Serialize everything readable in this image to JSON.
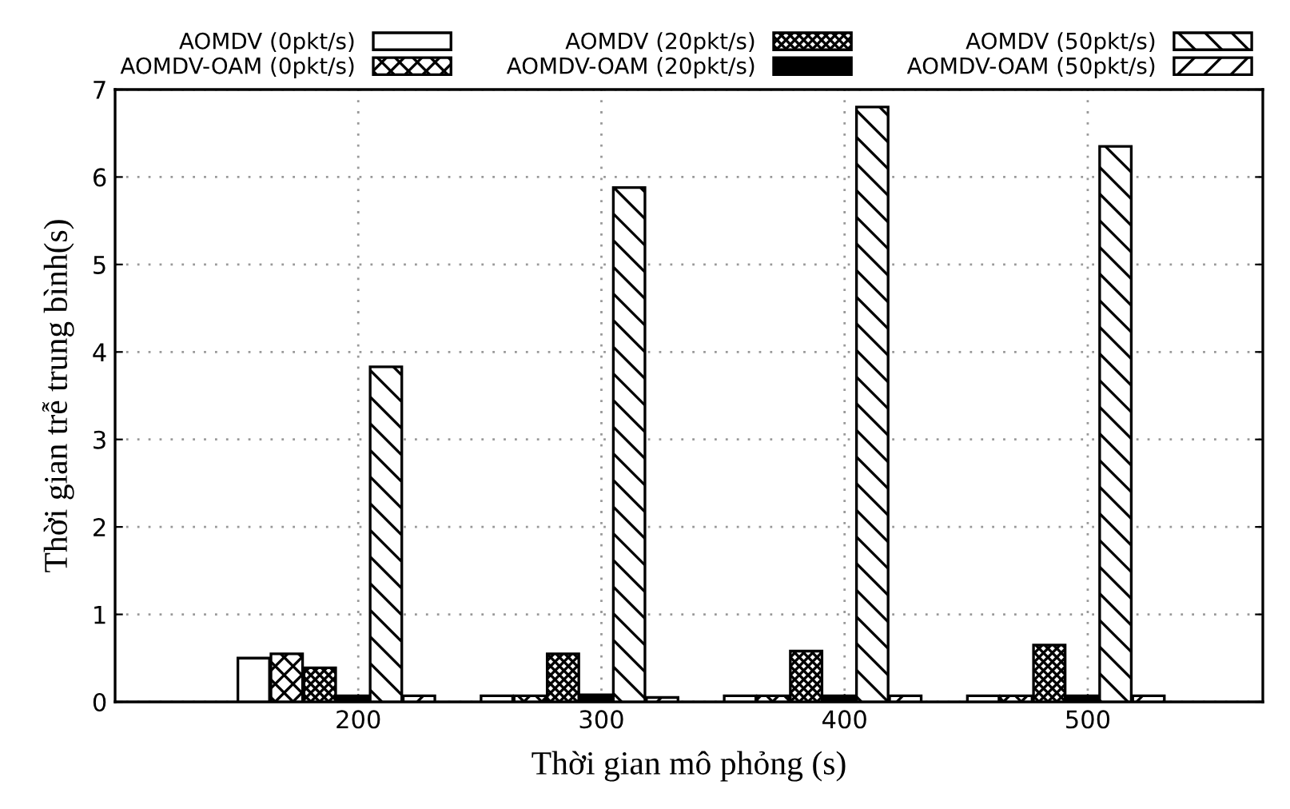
{
  "chart_data": {
    "type": "bar",
    "xlabel": "Thời gian mô phỏng (s)",
    "ylabel": "Thời gian trễ trung bình(s)",
    "categories": [
      "200",
      "300",
      "400",
      "500"
    ],
    "series": [
      {
        "name": "AOMDV (0pkt/s)",
        "color": "#ffffff",
        "values": [
          0.5,
          0.07,
          0.07,
          0.07
        ]
      },
      {
        "name": "AOMDV-OAM (0pkt/s)",
        "color": "#000000",
        "values": [
          0.55,
          0.07,
          0.07,
          0.07
        ]
      },
      {
        "name": "AOMDV (20pkt/s)",
        "color": "#000000",
        "values": [
          0.39,
          0.55,
          0.58,
          0.65
        ]
      },
      {
        "name": "AOMDV-OAM (20pkt/s)",
        "color": "#000000",
        "values": [
          0.07,
          0.08,
          0.07,
          0.07
        ]
      },
      {
        "name": "AOMDV (50pkt/s)",
        "color": "#000000",
        "values": [
          3.83,
          5.88,
          6.8,
          6.35
        ]
      },
      {
        "name": "AOMDV-OAM (50pkt/s)",
        "color": "#000000",
        "values": [
          0.07,
          0.05,
          0.07,
          0.07
        ]
      }
    ],
    "ylim": [
      0,
      7
    ],
    "yticks": [
      0,
      1,
      2,
      3,
      4,
      5,
      6,
      7
    ],
    "grid": true,
    "legend": "top"
  }
}
